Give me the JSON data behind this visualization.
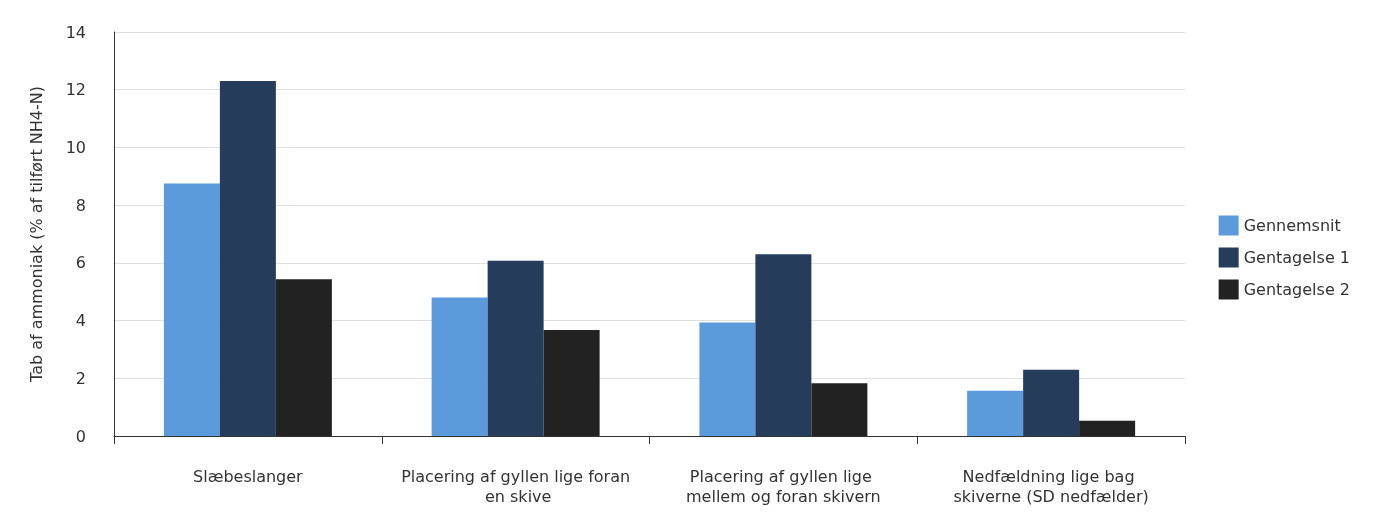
{
  "chart_data": {
    "type": "bar",
    "ylabel": "Tab af ammoniak (% af tilført NH4-N)",
    "categories": [
      "Slæbeslanger",
      "Placering af gyllen lige foran en skive",
      "Placering af gyllen lige mellem og foran skivern",
      "Nedfældning lige bag skiverne (SD nedfælder)"
    ],
    "series": [
      {
        "name": "Gennemsnit",
        "color": "#5b9bdc",
        "values": [
          8.75,
          4.8,
          3.93,
          1.57
        ]
      },
      {
        "name": "Gentagelse 1",
        "color": "#253d5b",
        "values": [
          12.3,
          6.07,
          6.3,
          2.3
        ]
      },
      {
        "name": "Gentagelse 2",
        "color": "#222222",
        "values": [
          5.43,
          3.67,
          1.83,
          0.53
        ]
      }
    ],
    "ylim": [
      0,
      14
    ],
    "yticks": [
      0,
      2,
      4,
      6,
      8,
      10,
      12,
      14
    ],
    "grid": "y",
    "legend": "right"
  }
}
